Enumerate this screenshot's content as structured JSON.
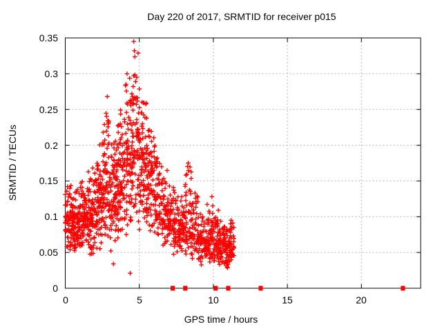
{
  "chart_data": {
    "type": "scatter",
    "title": "Day 220 of 2017, SRMTID for receiver p015",
    "xlabel": "GPS time / hours",
    "ylabel": "SRMTID / TECUs",
    "xlim": [
      0,
      24
    ],
    "ylim": [
      0,
      0.35
    ],
    "xticks": [
      0,
      5,
      10,
      15,
      20
    ],
    "yticks": [
      0,
      0.05,
      0.1,
      0.15,
      0.2,
      0.25,
      0.3,
      0.35
    ],
    "grid": true,
    "legend": "none",
    "marker": "plus",
    "marker_color": "#ff0000",
    "grid_color": "#b5b5b5",
    "border_color": "#000000",
    "series": [
      {
        "name": "SRMTID",
        "bin_format": "[hour_start, hour_end, point_count, y_min, y_mode, y_max] (TECUs)",
        "cluster_bins": [
          [
            0.0,
            0.5,
            78,
            0.048,
            0.09,
            0.148
          ],
          [
            0.5,
            1.0,
            80,
            0.038,
            0.085,
            0.14
          ],
          [
            1.0,
            1.5,
            80,
            0.045,
            0.095,
            0.155
          ],
          [
            1.5,
            2.0,
            80,
            0.04,
            0.1,
            0.175
          ],
          [
            2.0,
            2.5,
            80,
            0.05,
            0.11,
            0.205
          ],
          [
            2.5,
            3.0,
            80,
            0.055,
            0.12,
            0.27
          ],
          [
            3.0,
            3.5,
            78,
            0.05,
            0.13,
            0.225
          ],
          [
            3.5,
            4.0,
            78,
            0.06,
            0.14,
            0.26
          ],
          [
            4.0,
            4.5,
            80,
            0.065,
            0.16,
            0.31
          ],
          [
            4.5,
            5.0,
            82,
            0.075,
            0.18,
            0.345
          ],
          [
            5.0,
            5.5,
            76,
            0.08,
            0.165,
            0.28
          ],
          [
            5.5,
            6.0,
            68,
            0.07,
            0.14,
            0.24
          ],
          [
            6.0,
            6.5,
            62,
            0.06,
            0.12,
            0.215
          ],
          [
            6.5,
            7.0,
            60,
            0.05,
            0.1,
            0.175
          ],
          [
            7.0,
            7.5,
            58,
            0.042,
            0.085,
            0.155
          ],
          [
            7.5,
            8.0,
            58,
            0.04,
            0.075,
            0.135
          ],
          [
            8.0,
            8.5,
            60,
            0.038,
            0.08,
            0.175
          ],
          [
            8.5,
            9.0,
            56,
            0.035,
            0.068,
            0.148
          ],
          [
            9.0,
            9.5,
            54,
            0.03,
            0.06,
            0.118
          ],
          [
            9.5,
            10.0,
            60,
            0.028,
            0.062,
            0.128
          ],
          [
            10.0,
            10.5,
            66,
            0.022,
            0.052,
            0.112
          ],
          [
            10.5,
            11.0,
            66,
            0.024,
            0.055,
            0.098
          ],
          [
            11.0,
            11.4,
            50,
            0.03,
            0.06,
            0.1
          ]
        ],
        "notable_points": [
          [
            4.62,
            0.345
          ],
          [
            4.17,
            0.3
          ],
          [
            2.84,
            0.268
          ],
          [
            8.3,
            0.175
          ],
          [
            9.9,
            0.128
          ],
          [
            0.15,
            0.142
          ],
          [
            4.38,
            0.021
          ],
          [
            3.25,
            0.034
          ],
          [
            11.2,
            0.095
          ]
        ],
        "baseline_marker_hours": [
          7.25,
          8.1,
          10.15,
          11.0,
          13.2,
          22.8
        ],
        "baseline_marker_value": 0
      }
    ]
  }
}
